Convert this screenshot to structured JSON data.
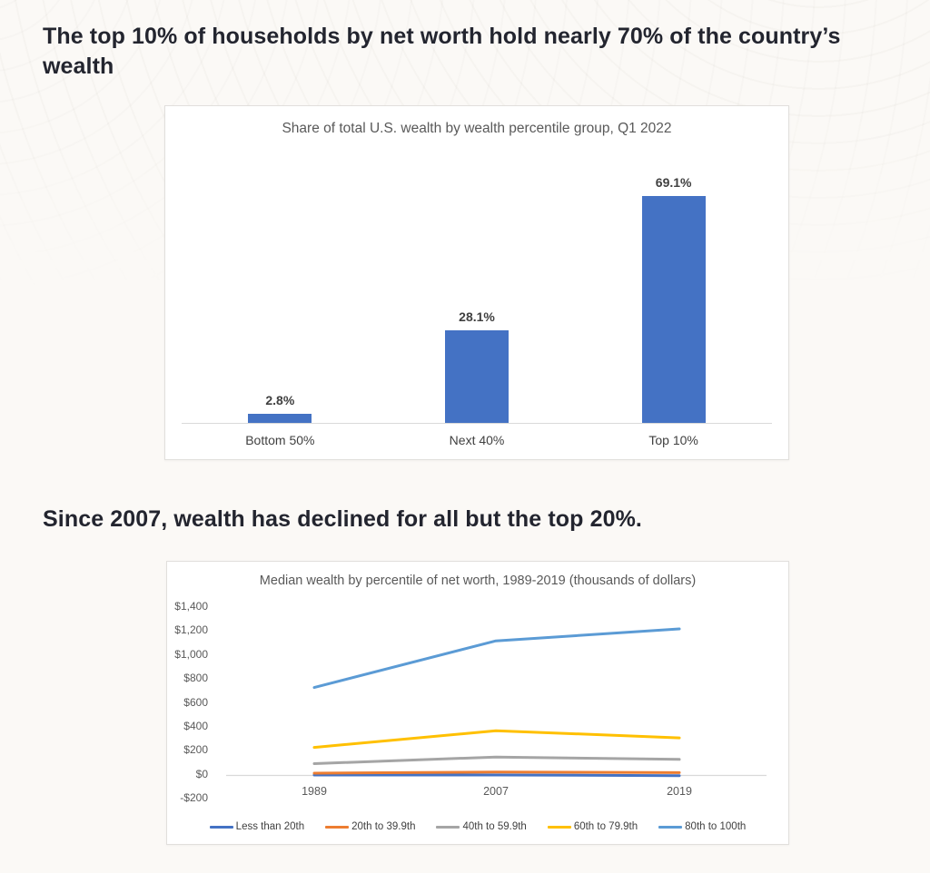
{
  "page": {
    "heading1": "The top 10% of households by net worth hold nearly 70% of the country’s wealth",
    "heading2": "Since 2007, wealth has declined for all but the top 20%."
  },
  "colors": {
    "bar_blue": "#4472c4",
    "axis_gray": "#d9d9d9",
    "title_gray": "#595959",
    "label_gray": "#404040"
  },
  "chart_data": [
    {
      "type": "bar",
      "title": "Share of total U.S. wealth by wealth percentile group, Q1 2022",
      "categories": [
        "Bottom 50%",
        "Next 40%",
        "Top 10%"
      ],
      "values": [
        2.8,
        28.1,
        69.1
      ],
      "value_labels": [
        "2.8%",
        "28.1%",
        "69.1%"
      ],
      "ylim": [
        0,
        75
      ],
      "bar_color": "#4472c4",
      "grid": false,
      "legend_position": "none"
    },
    {
      "type": "line",
      "title": "Median wealth by percentile of net worth, 1989-2019 (thousands of dollars)",
      "x": [
        "1989",
        "2007",
        "2019"
      ],
      "series": [
        {
          "name": "Less than 20th",
          "color": "#4472c4",
          "values": [
            0,
            0,
            -5
          ]
        },
        {
          "name": "20th to 39.9th",
          "color": "#ed7d31",
          "values": [
            15,
            25,
            20
          ]
        },
        {
          "name": "40th to 59.9th",
          "color": "#a5a5a5",
          "values": [
            95,
            150,
            130
          ]
        },
        {
          "name": "60th to 79.9th",
          "color": "#ffc000",
          "values": [
            230,
            370,
            310
          ]
        },
        {
          "name": "80th to 100th",
          "color": "#5b9bd5",
          "values": [
            730,
            1120,
            1220
          ]
        }
      ],
      "y_ticks": [
        "$1,400",
        "$1,200",
        "$1,000",
        "$800",
        "$600",
        "$400",
        "$200",
        "$0",
        "-$200"
      ],
      "y_tick_values": [
        1400,
        1200,
        1000,
        800,
        600,
        400,
        200,
        0,
        -200
      ],
      "ylim": [
        -200,
        1400
      ],
      "grid": false,
      "legend_position": "bottom"
    }
  ]
}
